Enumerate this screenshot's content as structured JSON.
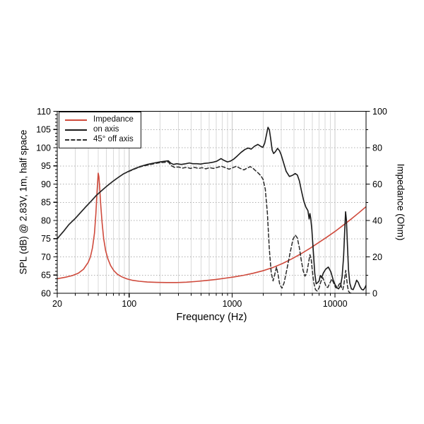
{
  "figure": {
    "background": "#ffffff",
    "plot_border_color": "#000000"
  },
  "chart_data": {
    "type": "line",
    "title": "",
    "x_axis": {
      "label": "Frequency (Hz)",
      "scale": "log",
      "min": 20,
      "max": 20000,
      "tick_values": [
        20,
        100,
        1000,
        10000
      ],
      "tick_labels": [
        "20",
        "100",
        "1000",
        "10000"
      ]
    },
    "y_left": {
      "label": "SPL (dB) @ 2.83V, 1m, half space",
      "min": 60,
      "max": 110,
      "tick_values": [
        60,
        65,
        70,
        75,
        80,
        85,
        90,
        95,
        100,
        105,
        110
      ],
      "tick_labels": [
        "60",
        "65",
        "70",
        "75",
        "80",
        "85",
        "90",
        "95",
        "100",
        "105",
        "110"
      ]
    },
    "y_right": {
      "label": "Impedance (Ohm)",
      "min": 0,
      "max": 100,
      "tick_values": [
        0,
        20,
        40,
        60,
        80,
        100
      ],
      "tick_labels": [
        "0",
        "20",
        "40",
        "60",
        "80",
        "100"
      ]
    },
    "grid": {
      "vertical": "log-decades",
      "horizontal_step_db": 5,
      "color": "#d9d9d9",
      "h_color": "#b0b0b0"
    },
    "legend": {
      "position": "top-left",
      "entries": [
        {
          "label": "Impedance",
          "color": "#cf4a3c",
          "style": "solid"
        },
        {
          "label": "on axis",
          "color": "#1a1a1a",
          "style": "solid"
        },
        {
          "label": "45° off axis",
          "color": "#2a2a2a",
          "style": "dashed"
        }
      ]
    },
    "series": [
      {
        "name": "Impedance",
        "axis": "right",
        "unit": "Ohm",
        "color": "#cf4a3c",
        "style": "solid",
        "width": 1.6,
        "points": [
          [
            20,
            8
          ],
          [
            24,
            8.8
          ],
          [
            28,
            9.7
          ],
          [
            32,
            11
          ],
          [
            36,
            13.2
          ],
          [
            40,
            17
          ],
          [
            42,
            20
          ],
          [
            44,
            25
          ],
          [
            46,
            33
          ],
          [
            47.5,
            44
          ],
          [
            48.5,
            54
          ],
          [
            49.5,
            62
          ],
          [
            50,
            66
          ],
          [
            50.8,
            64
          ],
          [
            51.8,
            57
          ],
          [
            53,
            48
          ],
          [
            54.5,
            39
          ],
          [
            56.5,
            30
          ],
          [
            59,
            23.5
          ],
          [
            62,
            19
          ],
          [
            66,
            15.2
          ],
          [
            71,
            12.4
          ],
          [
            77,
            10.4
          ],
          [
            85,
            9
          ],
          [
            95,
            7.9
          ],
          [
            108,
            7.1
          ],
          [
            125,
            6.6
          ],
          [
            150,
            6.2
          ],
          [
            185,
            6
          ],
          [
            230,
            5.9
          ],
          [
            290,
            5.9
          ],
          [
            360,
            6.1
          ],
          [
            450,
            6.5
          ],
          [
            560,
            7
          ],
          [
            700,
            7.6
          ],
          [
            860,
            8.3
          ],
          [
            1050,
            9
          ],
          [
            1300,
            9.9
          ],
          [
            1600,
            11
          ],
          [
            2000,
            12.4
          ],
          [
            2500,
            14.2
          ],
          [
            3100,
            16.4
          ],
          [
            3800,
            18.9
          ],
          [
            4700,
            21.8
          ],
          [
            5700,
            24.7
          ],
          [
            6900,
            27.8
          ],
          [
            8300,
            30.8
          ],
          [
            10000,
            34
          ],
          [
            12000,
            37.4
          ],
          [
            14500,
            41
          ],
          [
            17000,
            44.2
          ],
          [
            20000,
            47.6
          ]
        ]
      },
      {
        "name": "on axis",
        "axis": "left",
        "unit": "dB",
        "color": "#1a1a1a",
        "style": "solid",
        "width": 1.6,
        "points": [
          [
            20,
            75
          ],
          [
            23,
            77
          ],
          [
            26,
            78.9
          ],
          [
            30,
            80.6
          ],
          [
            34,
            82.3
          ],
          [
            38,
            83.8
          ],
          [
            43,
            85.4
          ],
          [
            48,
            86.9
          ],
          [
            54,
            88.2
          ],
          [
            61,
            89.5
          ],
          [
            69,
            90.7
          ],
          [
            78,
            91.8
          ],
          [
            88,
            92.8
          ],
          [
            100,
            93.6
          ],
          [
            114,
            94.3
          ],
          [
            130,
            94.9
          ],
          [
            150,
            95.4
          ],
          [
            175,
            95.8
          ],
          [
            200,
            96.1
          ],
          [
            225,
            96.3
          ],
          [
            240,
            96.4
          ],
          [
            255,
            95.7
          ],
          [
            270,
            95.4
          ],
          [
            290,
            95.6
          ],
          [
            320,
            95.4
          ],
          [
            355,
            95.6
          ],
          [
            385,
            95.8
          ],
          [
            415,
            95.6
          ],
          [
            455,
            95.6
          ],
          [
            495,
            95.5
          ],
          [
            540,
            95.7
          ],
          [
            590,
            95.8
          ],
          [
            650,
            96
          ],
          [
            710,
            96.3
          ],
          [
            780,
            97
          ],
          [
            835,
            96.5
          ],
          [
            900,
            96.1
          ],
          [
            960,
            96.3
          ],
          [
            1030,
            96.8
          ],
          [
            1120,
            97.7
          ],
          [
            1220,
            98.7
          ],
          [
            1330,
            99.5
          ],
          [
            1430,
            99.9
          ],
          [
            1530,
            99.6
          ],
          [
            1650,
            100.4
          ],
          [
            1780,
            100.9
          ],
          [
            1890,
            100.4
          ],
          [
            1990,
            100.1
          ],
          [
            2070,
            101.2
          ],
          [
            2150,
            103.4
          ],
          [
            2230,
            105.6
          ],
          [
            2300,
            104.9
          ],
          [
            2370,
            102.4
          ],
          [
            2450,
            99.3
          ],
          [
            2530,
            98.4
          ],
          [
            2630,
            98.9
          ],
          [
            2760,
            99.8
          ],
          [
            2880,
            99.2
          ],
          [
            3000,
            98
          ],
          [
            3150,
            96
          ],
          [
            3350,
            93.5
          ],
          [
            3600,
            92.1
          ],
          [
            3850,
            92.4
          ],
          [
            4100,
            92.9
          ],
          [
            4300,
            92.5
          ],
          [
            4500,
            90.9
          ],
          [
            4700,
            88.3
          ],
          [
            4950,
            85.5
          ],
          [
            5200,
            83.7
          ],
          [
            5450,
            82.7
          ],
          [
            5600,
            80.4
          ],
          [
            5700,
            81.9
          ],
          [
            5800,
            80.6
          ],
          [
            5950,
            77.5
          ],
          [
            6150,
            71.5
          ],
          [
            6350,
            65.5
          ],
          [
            6550,
            62.6
          ],
          [
            6750,
            62.9
          ],
          [
            7000,
            63.4
          ],
          [
            7200,
            64.9
          ],
          [
            7400,
            64.3
          ],
          [
            7700,
            65.6
          ],
          [
            8100,
            66.6
          ],
          [
            8600,
            67.2
          ],
          [
            9100,
            65.9
          ],
          [
            9600,
            63.6
          ],
          [
            10000,
            62.4
          ],
          [
            10400,
            61.6
          ],
          [
            10800,
            61.2
          ],
          [
            11300,
            62
          ],
          [
            11700,
            64.5
          ],
          [
            12100,
            70
          ],
          [
            12400,
            77
          ],
          [
            12650,
            82.4
          ],
          [
            12900,
            80
          ],
          [
            13200,
            73
          ],
          [
            13500,
            66.5
          ],
          [
            13900,
            62.8
          ],
          [
            14400,
            61.2
          ],
          [
            15000,
            61
          ],
          [
            15600,
            62.2
          ],
          [
            16200,
            63.6
          ],
          [
            16800,
            63
          ],
          [
            17400,
            61.9
          ],
          [
            18100,
            61.1
          ],
          [
            18800,
            60.9
          ],
          [
            19400,
            61.4
          ],
          [
            20000,
            62.2
          ]
        ]
      },
      {
        "name": "45° off axis",
        "axis": "left",
        "unit": "dB",
        "color": "#2a2a2a",
        "style": "dashed",
        "width": 1.5,
        "points": [
          [
            20,
            75
          ],
          [
            23,
            77
          ],
          [
            26,
            78.9
          ],
          [
            30,
            80.6
          ],
          [
            34,
            82.3
          ],
          [
            38,
            83.8
          ],
          [
            43,
            85.4
          ],
          [
            48,
            86.9
          ],
          [
            54,
            88.2
          ],
          [
            61,
            89.5
          ],
          [
            69,
            90.7
          ],
          [
            78,
            91.8
          ],
          [
            88,
            92.8
          ],
          [
            100,
            93.5
          ],
          [
            114,
            94.2
          ],
          [
            130,
            94.8
          ],
          [
            150,
            95.2
          ],
          [
            175,
            95.6
          ],
          [
            200,
            95.9
          ],
          [
            225,
            96
          ],
          [
            240,
            96.1
          ],
          [
            255,
            95.1
          ],
          [
            275,
            94.6
          ],
          [
            300,
            94.7
          ],
          [
            330,
            94.4
          ],
          [
            360,
            94.6
          ],
          [
            395,
            94.3
          ],
          [
            430,
            94.6
          ],
          [
            470,
            94.3
          ],
          [
            510,
            94.5
          ],
          [
            555,
            94.2
          ],
          [
            605,
            94.5
          ],
          [
            660,
            94.3
          ],
          [
            720,
            94.6
          ],
          [
            790,
            94.9
          ],
          [
            860,
            94.5
          ],
          [
            935,
            94.1
          ],
          [
            1015,
            94.5
          ],
          [
            1100,
            94.9
          ],
          [
            1200,
            94.3
          ],
          [
            1300,
            93.9
          ],
          [
            1400,
            94.4
          ],
          [
            1500,
            94.8
          ],
          [
            1600,
            94.3
          ],
          [
            1700,
            93.6
          ],
          [
            1800,
            93
          ],
          [
            1900,
            92.3
          ],
          [
            2000,
            91.3
          ],
          [
            2100,
            88.6
          ],
          [
            2200,
            82
          ],
          [
            2300,
            72
          ],
          [
            2400,
            65.5
          ],
          [
            2500,
            63.4
          ],
          [
            2600,
            65.3
          ],
          [
            2700,
            67.2
          ],
          [
            2800,
            65
          ],
          [
            2900,
            62.4
          ],
          [
            3050,
            61.4
          ],
          [
            3200,
            62.9
          ],
          [
            3400,
            66.5
          ],
          [
            3650,
            71
          ],
          [
            3900,
            74.8
          ],
          [
            4100,
            76
          ],
          [
            4300,
            75.2
          ],
          [
            4500,
            72.5
          ],
          [
            4700,
            69
          ],
          [
            4900,
            66.2
          ],
          [
            5100,
            64.7
          ],
          [
            5300,
            65.5
          ],
          [
            5500,
            68
          ],
          [
            5700,
            70.6
          ],
          [
            5850,
            69.5
          ],
          [
            6000,
            66.5
          ],
          [
            6200,
            63
          ],
          [
            6450,
            61
          ],
          [
            6700,
            60.6
          ],
          [
            7000,
            61.5
          ],
          [
            7300,
            63.3
          ],
          [
            7600,
            64.3
          ],
          [
            7900,
            63
          ],
          [
            8200,
            61.8
          ],
          [
            8500,
            61.6
          ],
          [
            8900,
            62.8
          ],
          [
            9300,
            63.9
          ],
          [
            9700,
            62.8
          ],
          [
            10100,
            61.6
          ],
          [
            10500,
            61.4
          ],
          [
            10900,
            62.4
          ],
          [
            11300,
            62.9
          ],
          [
            11600,
            61.4
          ],
          [
            11900,
            61
          ],
          [
            12200,
            62.5
          ],
          [
            12500,
            65
          ],
          [
            12700,
            66.3
          ],
          [
            12900,
            64.5
          ],
          [
            13200,
            62
          ],
          [
            13500,
            60.6
          ],
          [
            13900,
            60.1
          ],
          [
            14400,
            60
          ]
        ]
      }
    ]
  }
}
